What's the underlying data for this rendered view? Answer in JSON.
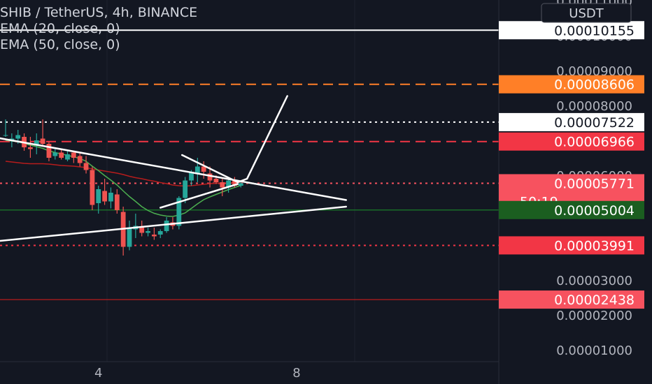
{
  "header": {
    "symbol_line": "SHIB / TetherUS, 4h, BINANCE",
    "indicators": [
      "EMA (20, close, 0)",
      "EMA (50, close, 0)"
    ]
  },
  "axis": {
    "currency": "USDT",
    "price_labels": [
      "0.00011000",
      "0.00010000",
      "0.00009000",
      "0.00008000",
      "0.00006000",
      "0.00003000",
      "0.00002000",
      "0.00001000"
    ],
    "time_labels": [
      "4",
      "8"
    ]
  },
  "price_tags": [
    {
      "value": "0.00010155",
      "bg": "#ffffff",
      "fg": "#131722"
    },
    {
      "value": "0.00008606",
      "bg": "#ff7f27",
      "fg": "#ffffff"
    },
    {
      "value": "0.00007522",
      "bg": "#ffffff",
      "fg": "#131722"
    },
    {
      "value": "0.00006966",
      "bg": "#f23645",
      "fg": "#ffffff"
    },
    {
      "value": "0.00005771",
      "bg": "#f7525f",
      "fg": "#ffffff",
      "countdown": "50:19"
    },
    {
      "value": "0.00005004",
      "bg": "#1b5e20",
      "fg": "#ffffff"
    },
    {
      "value": "0.00003991",
      "bg": "#f23645",
      "fg": "#ffffff"
    },
    {
      "value": "0.00002438",
      "bg": "#f7525f",
      "fg": "#ffffff"
    }
  ],
  "colors": {
    "background": "#131722",
    "grid": "#1e222d",
    "up": "#26a69a",
    "down": "#ef5350",
    "ema20": "#4caf50",
    "ema50": "#b71c1c",
    "drawing": "#ffffff",
    "axis_text": "#b2b5be"
  },
  "chart_data": {
    "type": "candlestick",
    "title": "SHIB / TetherUS, 4h, BINANCE",
    "y_scale": "linear",
    "ylim": [
      2e-07,
      0.0001102
    ],
    "x_ticks": [
      {
        "label": "4",
        "index": 15
      },
      {
        "label": "8",
        "index": 47
      }
    ],
    "candles": [
      {
        "o": 7.13e-05,
        "h": 7.6e-05,
        "l": 7.1e-05,
        "c": 7.15e-05
      },
      {
        "o": 7e-05,
        "h": 7.2e-05,
        "l": 6.8e-05,
        "c": 7.05e-05
      },
      {
        "o": 7.05e-05,
        "h": 7.3e-05,
        "l": 6.9e-05,
        "c": 7.15e-05
      },
      {
        "o": 7.1e-05,
        "h": 7.2e-05,
        "l": 6.7e-05,
        "c": 6.8e-05
      },
      {
        "o": 6.8e-05,
        "h": 7.1e-05,
        "l": 6.5e-05,
        "c": 6.75e-05
      },
      {
        "o": 6.85e-05,
        "h": 7.2e-05,
        "l": 6.6e-05,
        "c": 7e-05
      },
      {
        "o": 7.05e-05,
        "h": 7.6e-05,
        "l": 6.85e-05,
        "c": 6.9e-05
      },
      {
        "o": 6.9e-05,
        "h": 6.95e-05,
        "l": 6.4e-05,
        "c": 6.5e-05
      },
      {
        "o": 6.55e-05,
        "h": 6.75e-05,
        "l": 6.45e-05,
        "c": 6.65e-05
      },
      {
        "o": 6.65e-05,
        "h": 6.75e-05,
        "l": 6.45e-05,
        "c": 6.5e-05
      },
      {
        "o": 6.45e-05,
        "h": 6.7e-05,
        "l": 6.4e-05,
        "c": 6.6e-05
      },
      {
        "o": 6.65e-05,
        "h": 6.7e-05,
        "l": 6.35e-05,
        "c": 6.5e-05
      },
      {
        "o": 6.55e-05,
        "h": 6.65e-05,
        "l": 6.25e-05,
        "c": 6.35e-05
      },
      {
        "o": 6.35e-05,
        "h": 6.55e-05,
        "l": 6.05e-05,
        "c": 6.15e-05
      },
      {
        "o": 6.15e-05,
        "h": 6.25e-05,
        "l": 5e-05,
        "c": 5.15e-05
      },
      {
        "o": 5.2e-05,
        "h": 5.7e-05,
        "l": 4.9e-05,
        "c": 5.6e-05
      },
      {
        "o": 5.55e-05,
        "h": 5.9e-05,
        "l": 5.15e-05,
        "c": 5.25e-05
      },
      {
        "o": 5.25e-05,
        "h": 5.65e-05,
        "l": 5.05e-05,
        "c": 5.5e-05
      },
      {
        "o": 5.45e-05,
        "h": 5.6e-05,
        "l": 4.9e-05,
        "c": 5e-05
      },
      {
        "o": 4.95e-05,
        "h": 5.1e-05,
        "l": 3.7e-05,
        "c": 3.95e-05
      },
      {
        "o": 3.95e-05,
        "h": 4.7e-05,
        "l": 3.85e-05,
        "c": 4.5e-05
      },
      {
        "o": 4.45e-05,
        "h": 4.9e-05,
        "l": 4.2e-05,
        "c": 4.55e-05
      },
      {
        "o": 4.5e-05,
        "h": 4.7e-05,
        "l": 4.25e-05,
        "c": 4.35e-05
      },
      {
        "o": 4.35e-05,
        "h": 4.5e-05,
        "l": 4.25e-05,
        "c": 4.4e-05
      },
      {
        "o": 4.3e-05,
        "h": 4.5e-05,
        "l": 4.15e-05,
        "c": 4.25e-05
      },
      {
        "o": 4.3e-05,
        "h": 4.45e-05,
        "l": 4.2e-05,
        "c": 4.4e-05
      },
      {
        "o": 4.4e-05,
        "h": 4.8e-05,
        "l": 4.35e-05,
        "c": 4.7e-05
      },
      {
        "o": 4.65e-05,
        "h": 4.8e-05,
        "l": 4.45e-05,
        "c": 4.55e-05
      },
      {
        "o": 4.55e-05,
        "h": 5.4e-05,
        "l": 4.45e-05,
        "c": 5.35e-05
      },
      {
        "o": 5.35e-05,
        "h": 5.95e-05,
        "l": 5.2e-05,
        "c": 5.85e-05
      },
      {
        "o": 5.85e-05,
        "h": 6.15e-05,
        "l": 5.7e-05,
        "c": 6.1e-05
      },
      {
        "o": 6.05e-05,
        "h": 6.5e-05,
        "l": 5.8e-05,
        "c": 6.25e-05
      },
      {
        "o": 6.25e-05,
        "h": 6.4e-05,
        "l": 5.9e-05,
        "c": 6.1e-05
      },
      {
        "o": 6.05e-05,
        "h": 6.25e-05,
        "l": 5.65e-05,
        "c": 5.85e-05
      },
      {
        "o": 5.9e-05,
        "h": 6e-05,
        "l": 5.75e-05,
        "c": 5.8e-05
      },
      {
        "o": 5.8e-05,
        "h": 5.9e-05,
        "l": 5.4e-05,
        "c": 5.65e-05
      },
      {
        "o": 5.65e-05,
        "h": 5.9e-05,
        "l": 5.5e-05,
        "c": 5.85e-05
      },
      {
        "o": 5.85e-05,
        "h": 5.95e-05,
        "l": 5.65e-05,
        "c": 5.7e-05
      },
      {
        "o": 5.7e-05,
        "h": 5.85e-05,
        "l": 5.65e-05,
        "c": 5.771e-05
      }
    ],
    "ema20": [
      7e-05,
      6.98e-05,
      6.96e-05,
      6.91e-05,
      6.86e-05,
      6.82e-05,
      6.77e-05,
      6.7e-05,
      6.65e-05,
      6.61e-05,
      6.57e-05,
      6.53e-05,
      6.48e-05,
      6.4e-05,
      6.26e-05,
      6.13e-05,
      5.99e-05,
      5.86e-05,
      5.72e-05,
      5.55e-05,
      5.39e-05,
      5.25e-05,
      5.1e-05,
      4.99e-05,
      4.91e-05,
      4.86e-05,
      4.83e-05,
      4.82e-05,
      4.86e-05,
      4.92e-05,
      5.05e-05,
      5.18e-05,
      5.3e-05,
      5.38e-05,
      5.45e-05,
      5.52e-05,
      5.59e-05,
      5.65e-05,
      5.71e-05
    ],
    "ema50": [
      6.4e-05,
      6.38e-05,
      6.36e-05,
      6.34e-05,
      6.33e-05,
      6.33e-05,
      6.33e-05,
      6.32e-05,
      6.3e-05,
      6.28e-05,
      6.27e-05,
      6.26e-05,
      6.24e-05,
      6.22e-05,
      6.18e-05,
      6.15e-05,
      6.12e-05,
      6.09e-05,
      6.06e-05,
      6.02e-05,
      5.97e-05,
      5.93e-05,
      5.9e-05,
      5.86e-05,
      5.83e-05,
      5.79e-05,
      5.76e-05,
      5.72e-05,
      5.7e-05,
      5.69e-05,
      5.7e-05,
      5.72e-05,
      5.74e-05,
      5.76e-05,
      5.77e-05,
      5.78e-05,
      5.79e-05,
      5.79e-05,
      5.8e-05
    ],
    "horizontal_levels": [
      {
        "value": 0.00010155,
        "style": "solid",
        "color": "#ffffff"
      },
      {
        "value": 8.606e-05,
        "style": "dashed",
        "color": "#ff7f27"
      },
      {
        "value": 7.522e-05,
        "style": "dotted",
        "color": "#ffffff"
      },
      {
        "value": 6.966e-05,
        "style": "dashed",
        "color": "#f23645"
      },
      {
        "value": 5.771e-05,
        "style": "dotted",
        "color": "#f7525f"
      },
      {
        "value": 5.004e-05,
        "style": "solid",
        "color": "#1b8a2a"
      },
      {
        "value": 3.991e-05,
        "style": "dotted",
        "color": "#f23645"
      },
      {
        "value": 2.438e-05,
        "style": "solid",
        "color": "#b71c1c"
      }
    ],
    "trendlines": [
      {
        "from": [
          -6,
          7.22e-05
        ],
        "to": [
          55,
          5.29e-05
        ]
      },
      {
        "from": [
          -6,
          4.03e-05
        ],
        "to": [
          55,
          5.1e-05
        ]
      },
      {
        "from": [
          25,
          5.07e-05
        ],
        "to": [
          37.5,
          5.75e-05
        ]
      },
      {
        "from": [
          28.5,
          6.58e-05
        ],
        "to": [
          37.5,
          5.8e-05
        ]
      },
      {
        "from": [
          37.5,
          5.8e-05
        ],
        "to": [
          39,
          5.9e-05
        ]
      },
      {
        "from": [
          39,
          5.9e-05
        ],
        "to": [
          45.5,
          8.27e-05
        ]
      }
    ]
  }
}
